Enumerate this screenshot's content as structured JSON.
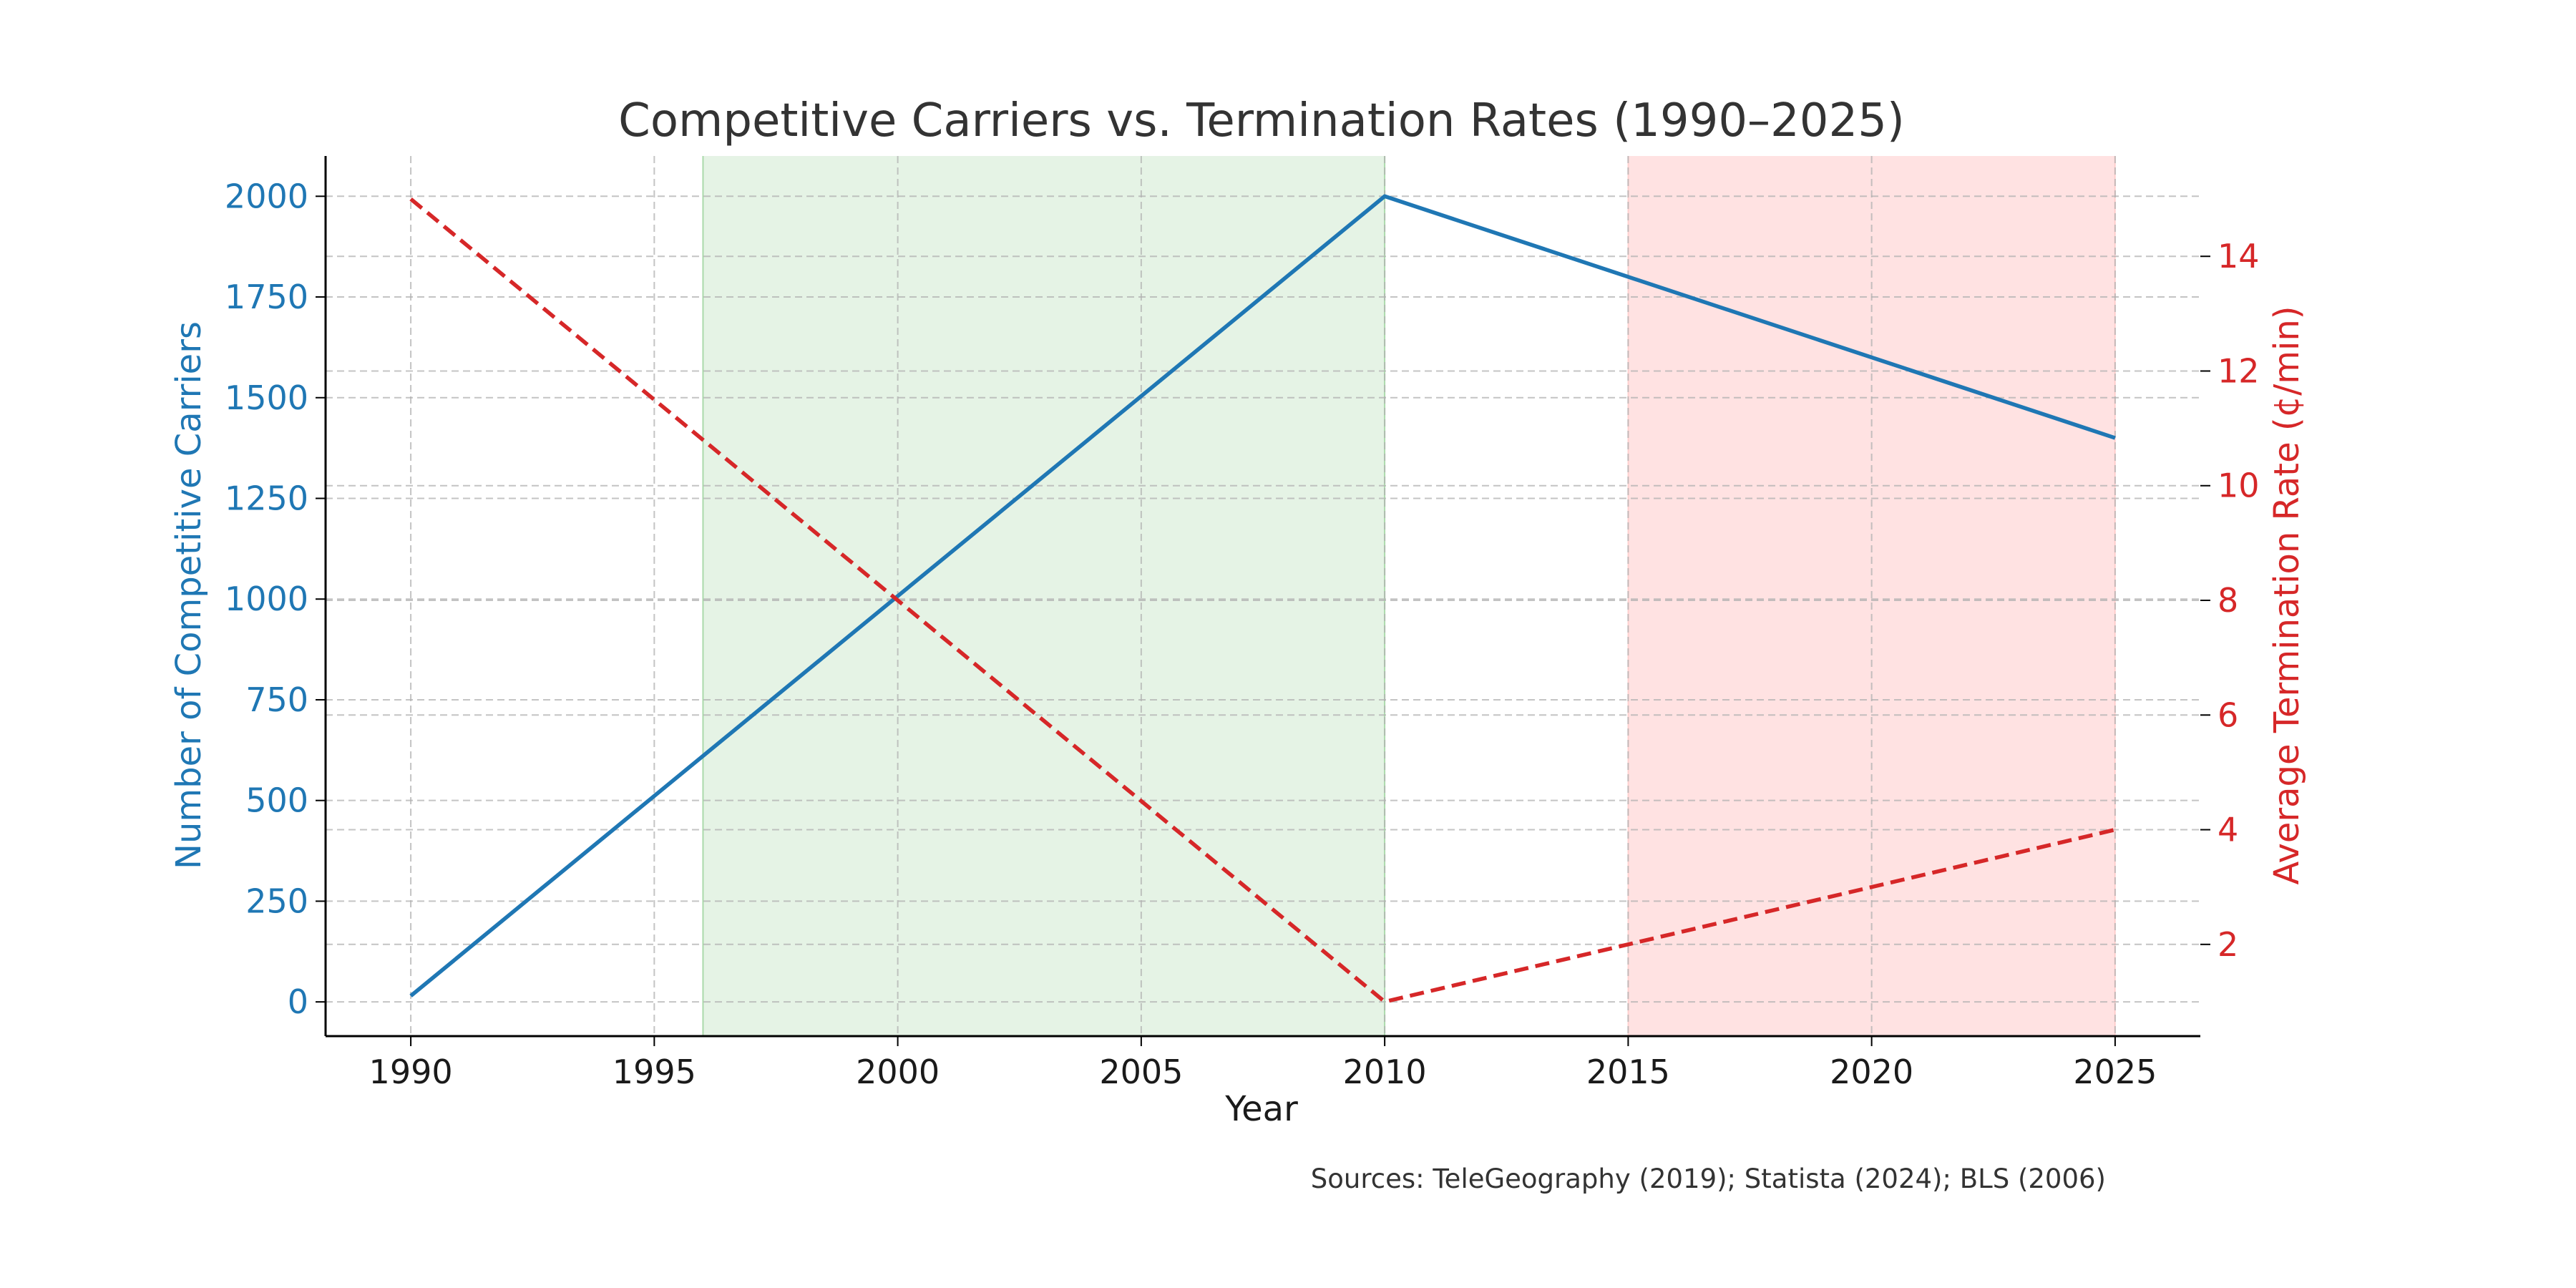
{
  "chart_data": {
    "type": "line",
    "title": "Competitive Carriers vs. Termination Rates (1990–2025)",
    "xlabel": "Year",
    "ylabel_left": "Number of Competitive Carriers",
    "ylabel_right": "Average Termination Rate (¢/min)",
    "x": [
      1990,
      2010,
      2025
    ],
    "xlim": [
      1988.25,
      2026.75
    ],
    "xticks": [
      "1990",
      "1995",
      "2000",
      "2005",
      "2010",
      "2015",
      "2020",
      "2025"
    ],
    "y_left_lim": [
      -85,
      2100
    ],
    "y_left_ticks": [
      "0",
      "250",
      "500",
      "750",
      "1000",
      "1250",
      "1500",
      "1750",
      "2000"
    ],
    "y_right_lim": [
      0.4,
      15.75
    ],
    "y_right_ticks": [
      "2",
      "4",
      "6",
      "8",
      "10",
      "12",
      "14"
    ],
    "grid": true,
    "series": [
      {
        "axis": "left",
        "style": "solid",
        "color": "#1f77b4",
        "values": [
          15,
          2000,
          1400
        ]
      },
      {
        "axis": "right",
        "style": "dashed",
        "color": "#d62728",
        "values": [
          15,
          1,
          4
        ]
      }
    ],
    "shaded_regions": [
      {
        "from": 1996,
        "to": 2010,
        "color": "#2ca02c",
        "opacity": 0.12
      },
      {
        "from": 2015,
        "to": 2025,
        "color": "#ff9896",
        "opacity": 0.28
      }
    ],
    "source_note": "Sources: TeleGeography (2019); Statista (2024); BLS (2006)"
  }
}
